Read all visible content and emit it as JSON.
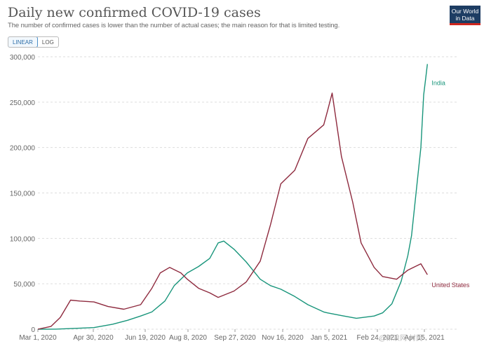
{
  "header": {
    "title": "Daily new confirmed COVID-19 cases",
    "subtitle": "The number of confirmed cases is lower than the number of actual cases; the main reason for that is limited testing."
  },
  "logo": {
    "line1": "Our World",
    "line2": "in Data"
  },
  "scale_toggle": {
    "linear": "LINEAR",
    "log": "LOG",
    "selected": "LINEAR"
  },
  "watermark": "@新浪网 村民",
  "colors": {
    "india": "#18957b",
    "us": "#8e2a3e",
    "grid": "#dddddd"
  },
  "chart_data": {
    "type": "line",
    "title": "Daily new confirmed COVID-19 cases",
    "y_ticks": [
      "0",
      "50,000",
      "100,000",
      "150,000",
      "200,000",
      "250,000",
      "300,000"
    ],
    "x_ticks": [
      "Mar 1, 2020",
      "Apr 30, 2020",
      "Jun 19, 2020",
      "Aug 8, 2020",
      "Sep 27, 2020",
      "Nov 16, 2020",
      "Jan 5, 2021",
      "Feb 24, 2021",
      "Apr 15, 2021"
    ],
    "x_range": [
      "2020-03-01",
      "2021-04-24"
    ],
    "ylim": [
      0,
      300000
    ],
    "grid": true,
    "legend": "inline labels at line ends",
    "series": [
      {
        "name": "India",
        "color": "#18957b",
        "points": [
          [
            "2020-03-01",
            0
          ],
          [
            "2020-03-20",
            50
          ],
          [
            "2020-04-10",
            900
          ],
          [
            "2020-04-30",
            1800
          ],
          [
            "2020-05-20",
            5500
          ],
          [
            "2020-06-05",
            9800
          ],
          [
            "2020-06-19",
            14500
          ],
          [
            "2020-07-01",
            19000
          ],
          [
            "2020-07-15",
            31000
          ],
          [
            "2020-07-25",
            48000
          ],
          [
            "2020-08-08",
            62000
          ],
          [
            "2020-08-20",
            69000
          ],
          [
            "2020-09-01",
            78000
          ],
          [
            "2020-09-10",
            95000
          ],
          [
            "2020-09-16",
            97000
          ],
          [
            "2020-09-27",
            88000
          ],
          [
            "2020-10-10",
            74000
          ],
          [
            "2020-10-25",
            55000
          ],
          [
            "2020-11-05",
            48000
          ],
          [
            "2020-11-16",
            44000
          ],
          [
            "2020-12-01",
            36000
          ],
          [
            "2020-12-15",
            27000
          ],
          [
            "2021-01-01",
            19000
          ],
          [
            "2021-01-05",
            18000
          ],
          [
            "2021-01-20",
            15000
          ],
          [
            "2021-02-05",
            12000
          ],
          [
            "2021-02-24",
            14500
          ],
          [
            "2021-03-05",
            18000
          ],
          [
            "2021-03-15",
            28000
          ],
          [
            "2021-03-25",
            53000
          ],
          [
            "2021-04-01",
            81000
          ],
          [
            "2021-04-05",
            103000
          ],
          [
            "2021-04-10",
            152000
          ],
          [
            "2021-04-15",
            200000
          ],
          [
            "2021-04-18",
            258000
          ],
          [
            "2021-04-20",
            275000
          ],
          [
            "2021-04-22",
            292000
          ]
        ]
      },
      {
        "name": "United States",
        "color": "#8e2a3e",
        "points": [
          [
            "2020-03-01",
            0
          ],
          [
            "2020-03-15",
            3000
          ],
          [
            "2020-03-25",
            13000
          ],
          [
            "2020-04-05",
            32000
          ],
          [
            "2020-04-15",
            31000
          ],
          [
            "2020-04-30",
            30000
          ],
          [
            "2020-05-15",
            25000
          ],
          [
            "2020-06-01",
            22000
          ],
          [
            "2020-06-19",
            27000
          ],
          [
            "2020-07-01",
            45000
          ],
          [
            "2020-07-10",
            62000
          ],
          [
            "2020-07-20",
            68000
          ],
          [
            "2020-08-01",
            62000
          ],
          [
            "2020-08-08",
            55000
          ],
          [
            "2020-08-20",
            45000
          ],
          [
            "2020-09-01",
            40000
          ],
          [
            "2020-09-10",
            35000
          ],
          [
            "2020-09-27",
            42000
          ],
          [
            "2020-10-10",
            52000
          ],
          [
            "2020-10-25",
            75000
          ],
          [
            "2020-11-05",
            115000
          ],
          [
            "2020-11-16",
            160000
          ],
          [
            "2020-12-01",
            175000
          ],
          [
            "2020-12-15",
            210000
          ],
          [
            "2021-01-01",
            225000
          ],
          [
            "2021-01-05",
            240000
          ],
          [
            "2021-01-10",
            260000
          ],
          [
            "2021-01-20",
            190000
          ],
          [
            "2021-02-01",
            140000
          ],
          [
            "2021-02-10",
            95000
          ],
          [
            "2021-02-24",
            68000
          ],
          [
            "2021-03-05",
            58000
          ],
          [
            "2021-03-20",
            55000
          ],
          [
            "2021-04-01",
            65000
          ],
          [
            "2021-04-15",
            72000
          ],
          [
            "2021-04-22",
            60000
          ]
        ]
      }
    ]
  }
}
